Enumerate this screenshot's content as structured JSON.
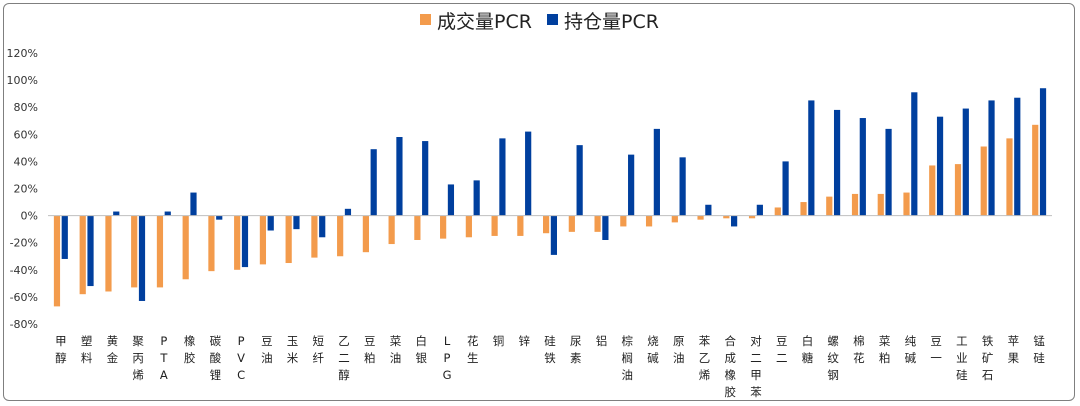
{
  "chart_data": {
    "type": "bar",
    "title": "",
    "xlabel": "",
    "ylabel": "",
    "ylim": [
      -80,
      120
    ],
    "yticks": [
      "-80%",
      "-60%",
      "-40%",
      "-20%",
      "0%",
      "20%",
      "40%",
      "60%",
      "80%",
      "100%",
      "120%"
    ],
    "ytick_values": [
      -80,
      -60,
      -40,
      -20,
      0,
      20,
      40,
      60,
      80,
      100,
      120
    ],
    "grid": false,
    "legend": "top-center",
    "categories": [
      "甲醇",
      "塑料",
      "黄金",
      "聚丙烯",
      "PTA",
      "橡胶",
      "碳酸锂",
      "PVC",
      "豆油",
      "玉米",
      "短纤",
      "乙二醇",
      "豆粕",
      "菜油",
      "白银",
      "LPG",
      "花生",
      "铜",
      "锌",
      "硅铁",
      "尿素",
      "铝",
      "棕榈油",
      "烧碱",
      "原油",
      "苯乙烯",
      "合成橡胶",
      "对二甲苯",
      "豆二",
      "白糖",
      "螺纹钢",
      "棉花",
      "菜粕",
      "纯碱",
      "豆一",
      "工业硅",
      "铁矿石",
      "苹果",
      "锰硅"
    ],
    "series": [
      {
        "name": "成交量PCR",
        "color": "#f39b4c",
        "values": [
          -67,
          -58,
          -56,
          -53,
          -53,
          -47,
          -41,
          -40,
          -36,
          -35,
          -31,
          -30,
          -27,
          -21,
          -18,
          -17,
          -16,
          -15,
          -15,
          -13,
          -12,
          -12,
          -8,
          -8,
          -5,
          -3,
          -2,
          -2,
          6,
          10,
          14,
          16,
          16,
          17,
          37,
          38,
          51,
          57,
          67
        ]
      },
      {
        "name": "持仓量PCR",
        "color": "#003f9e",
        "values": [
          -32,
          -52,
          3,
          -63,
          3,
          17,
          -3,
          -38,
          -11,
          -10,
          -16,
          5,
          49,
          58,
          55,
          23,
          26,
          57,
          62,
          -29,
          52,
          -18,
          45,
          64,
          43,
          8,
          -8,
          8,
          40,
          85,
          78,
          72,
          64,
          91,
          73,
          79,
          85,
          87,
          94
        ]
      }
    ]
  }
}
